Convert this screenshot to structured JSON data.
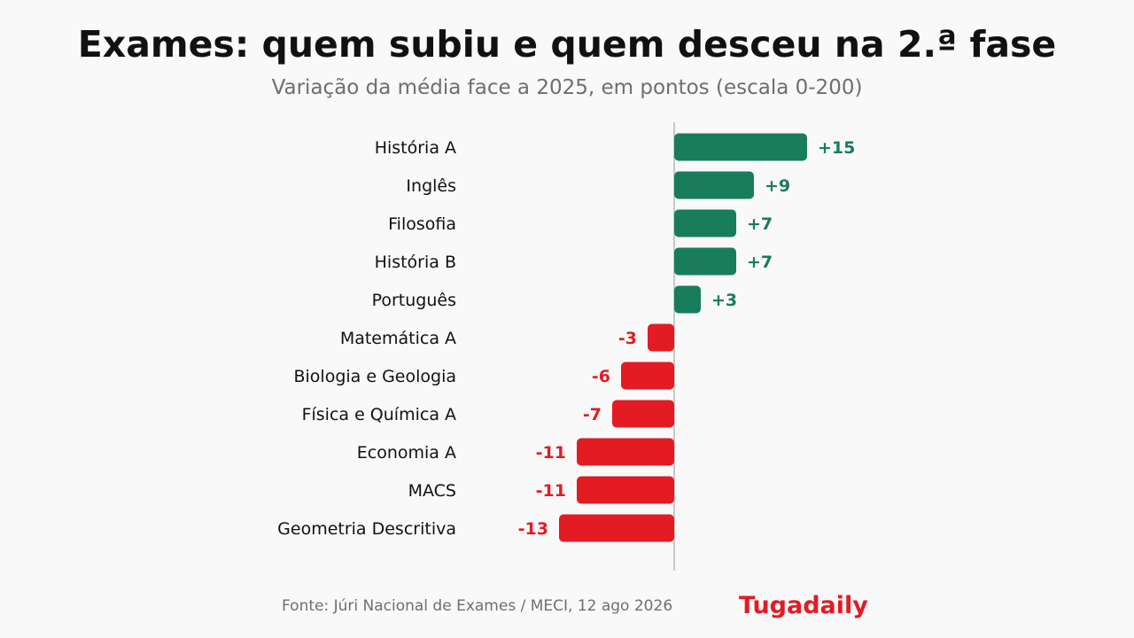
{
  "header": {
    "title": "Exames: quem subiu e quem desceu na 2.ª fase",
    "subtitle": "Variação da média face a 2025, em pontos (escala 0-200)"
  },
  "chart_data": {
    "type": "bar",
    "orientation": "horizontal",
    "title": "Exames: quem subiu e quem desceu na 2.ª fase",
    "subtitle": "Variação da média face a 2025, em pontos (escala 0-200)",
    "categories": [
      "História A",
      "Inglês",
      "Filosofia",
      "História B",
      "Português",
      "Matemática A",
      "Biologia e Geologia",
      "Física e Química A",
      "Economia A",
      "MACS",
      "Geometria Descritiva"
    ],
    "values": [
      15,
      9,
      7,
      7,
      3,
      -3,
      -6,
      -7,
      -11,
      -11,
      -13
    ],
    "value_labels": [
      "+15",
      "+9",
      "+7",
      "+7",
      "+3",
      "-3",
      "-6",
      "-7",
      "-11",
      "-11",
      "-13"
    ],
    "colors": {
      "positive": "#177d5a",
      "negative": "#e31b23",
      "baseline": "#c8c8c8",
      "category_text": "#111111"
    },
    "grid": false,
    "legend": "none"
  },
  "footer": {
    "source": "Fonte: Júri Nacional de Exames / MECI, 12 ago 2026",
    "brand": "Tugadaily"
  }
}
